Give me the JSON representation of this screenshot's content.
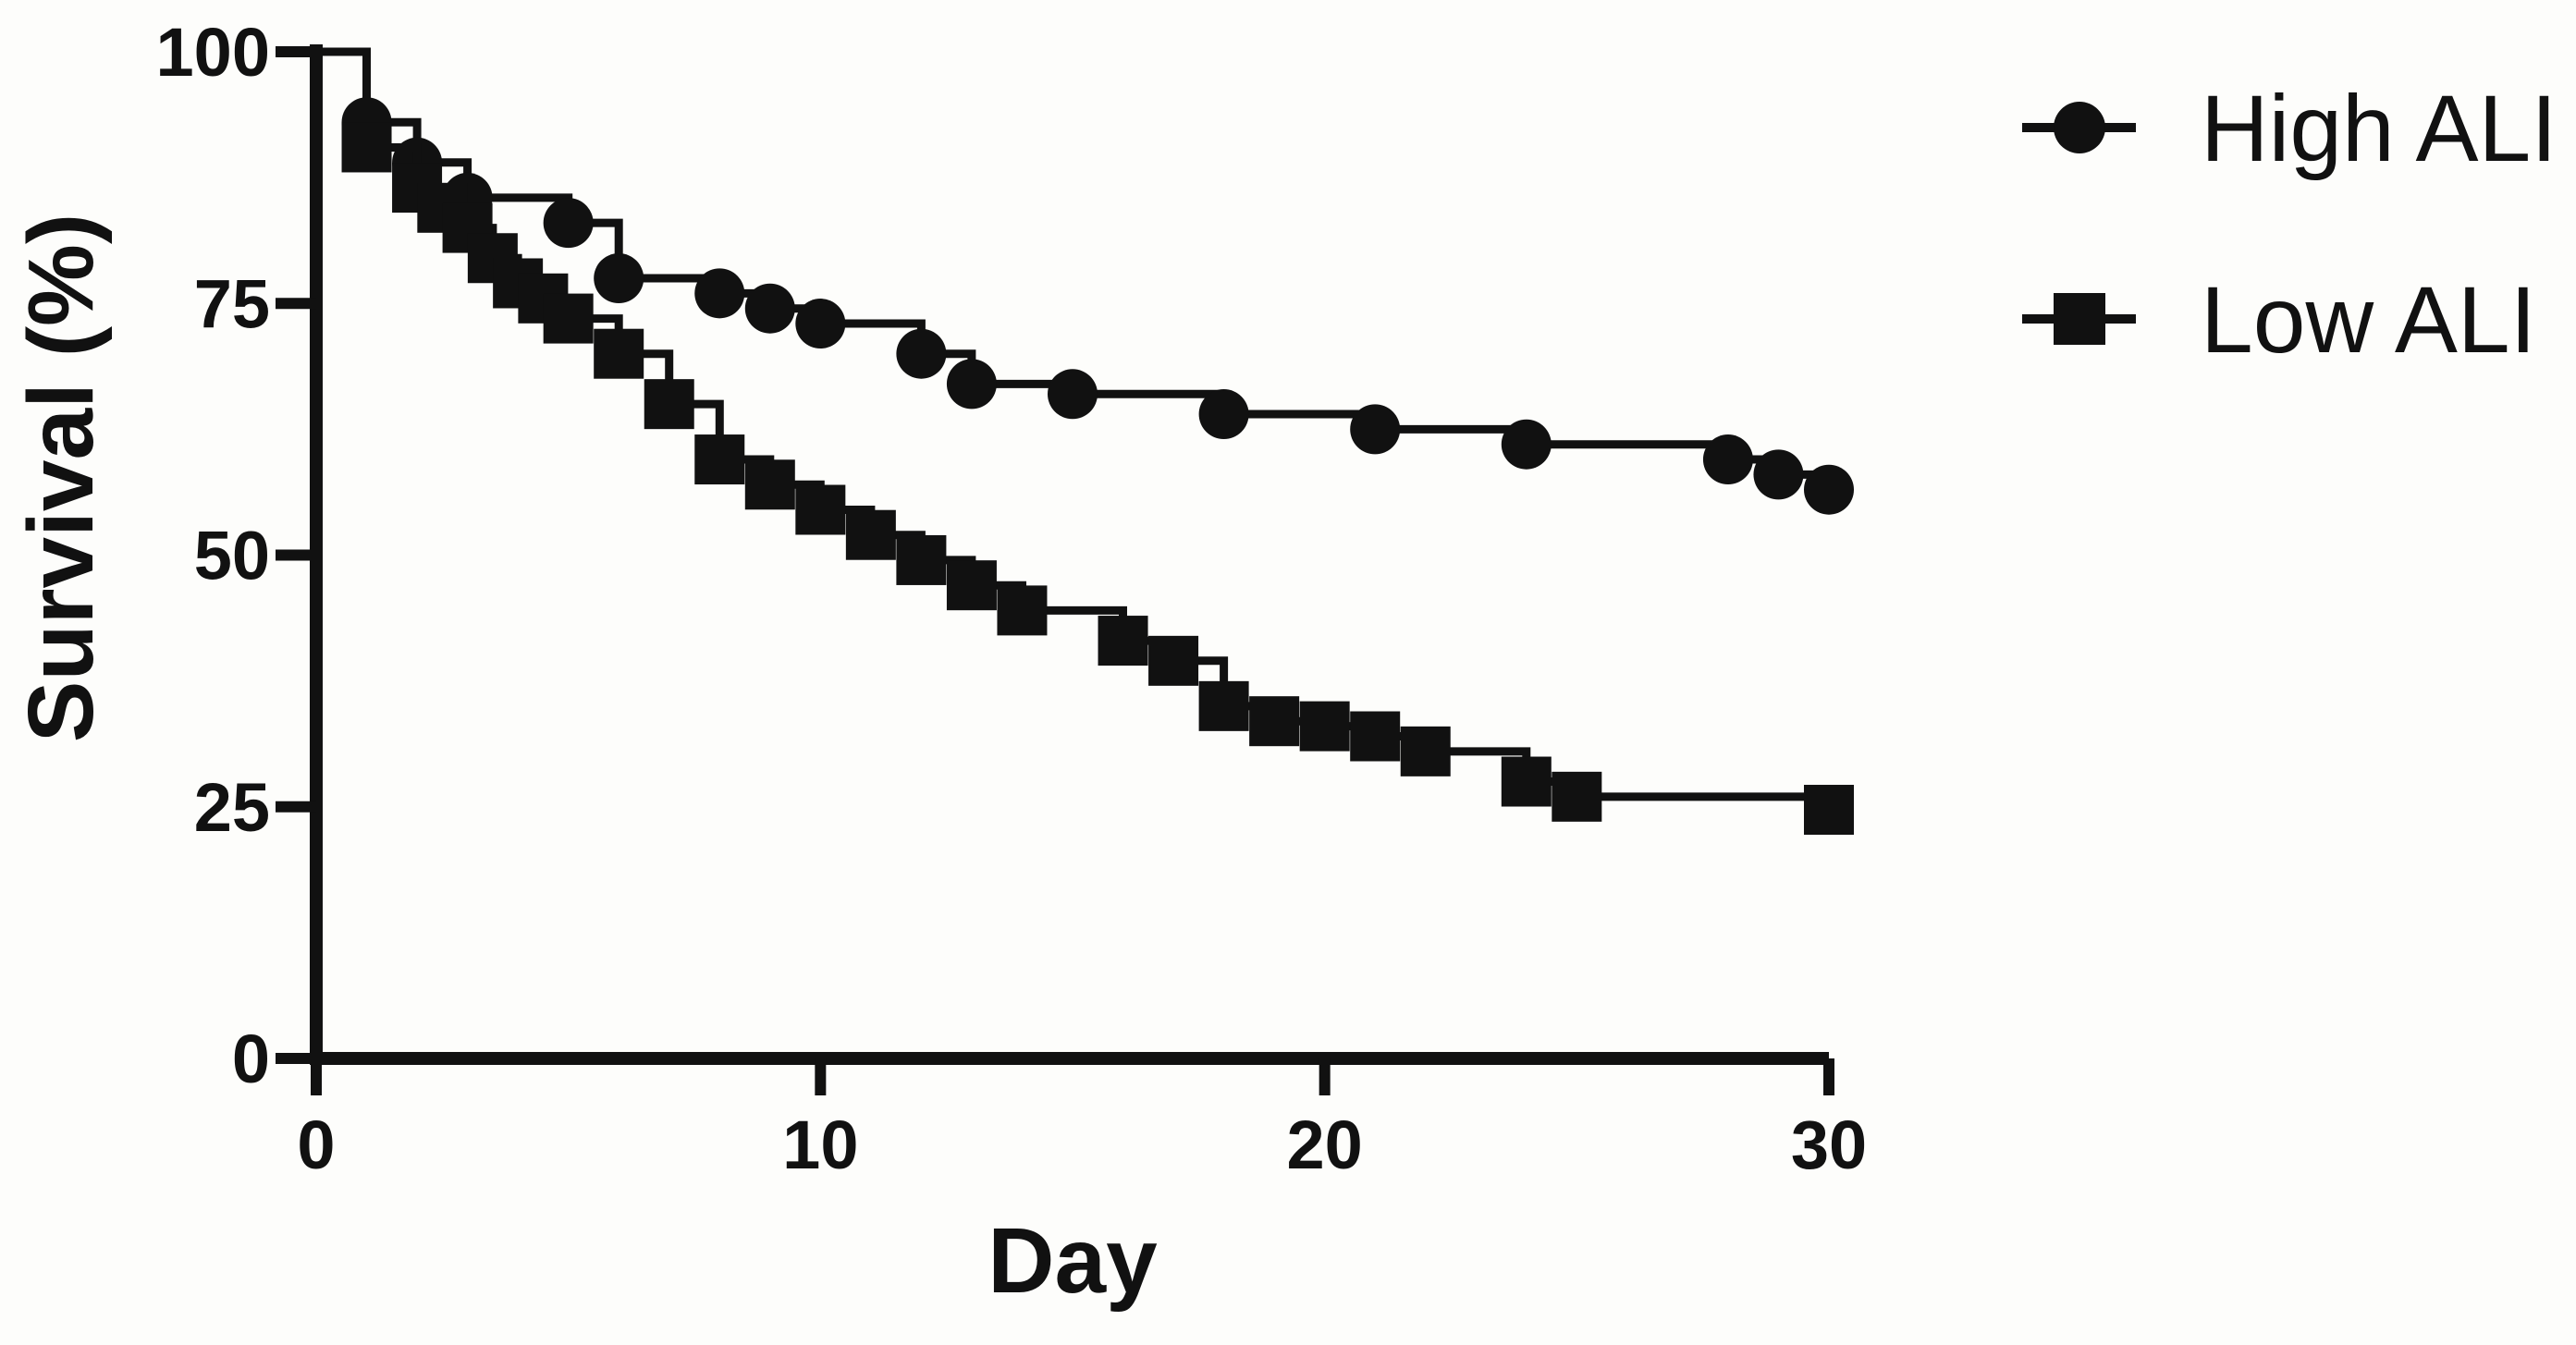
{
  "figure": {
    "background": "#fdfdfb",
    "ink_color": "#111111"
  },
  "chart_data": {
    "type": "line",
    "subtype": "kaplan-meier-step",
    "title": "",
    "xlabel": "Day",
    "ylabel": "Survival (%)",
    "xlim": [
      0,
      30
    ],
    "ylim": [
      0,
      100
    ],
    "x_ticks": [
      0,
      10,
      20,
      30
    ],
    "x_tick_labels": [
      "0",
      "10",
      "20",
      "30"
    ],
    "y_ticks": [
      100,
      75,
      50,
      25,
      0
    ],
    "y_tick_labels": [
      "100",
      "75",
      "50",
      "25",
      "0"
    ],
    "grid": false,
    "legend_position": "top-right",
    "series": [
      {
        "name": "High ALI",
        "marker": "circle",
        "color": "#111111",
        "steps": [
          [
            0,
            100
          ],
          [
            1,
            93
          ],
          [
            2,
            89
          ],
          [
            3,
            85.5
          ],
          [
            5,
            83
          ],
          [
            6,
            77.5
          ],
          [
            8,
            76
          ],
          [
            9,
            74.5
          ],
          [
            10,
            73
          ],
          [
            12,
            70
          ],
          [
            13,
            67
          ],
          [
            15,
            66
          ],
          [
            18,
            64
          ],
          [
            21,
            62.5
          ],
          [
            24,
            61
          ],
          [
            28,
            59.5
          ],
          [
            29,
            58
          ],
          [
            30,
            56.5
          ]
        ]
      },
      {
        "name": "Low ALI",
        "marker": "square",
        "color": "#111111",
        "steps": [
          [
            0,
            100
          ],
          [
            1,
            90.5
          ],
          [
            2,
            86.5
          ],
          [
            2.5,
            84.5
          ],
          [
            3,
            82.5
          ],
          [
            3.5,
            79.5
          ],
          [
            4,
            77
          ],
          [
            4.5,
            75.5
          ],
          [
            5,
            73.5
          ],
          [
            6,
            70
          ],
          [
            7,
            65
          ],
          [
            8,
            59.5
          ],
          [
            9,
            57
          ],
          [
            10,
            54.5
          ],
          [
            11,
            52
          ],
          [
            12,
            49.5
          ],
          [
            13,
            47
          ],
          [
            14,
            44.5
          ],
          [
            16,
            41.5
          ],
          [
            17,
            39.5
          ],
          [
            18,
            35
          ],
          [
            19,
            33.5
          ],
          [
            20,
            33
          ],
          [
            21,
            32
          ],
          [
            22,
            30.5
          ],
          [
            24,
            27.5
          ],
          [
            25,
            26
          ],
          [
            30,
            24.7
          ]
        ]
      }
    ]
  },
  "legend": {
    "items": [
      {
        "label": "High ALI",
        "marker": "circle"
      },
      {
        "label": "Low ALI",
        "marker": "square"
      }
    ]
  }
}
